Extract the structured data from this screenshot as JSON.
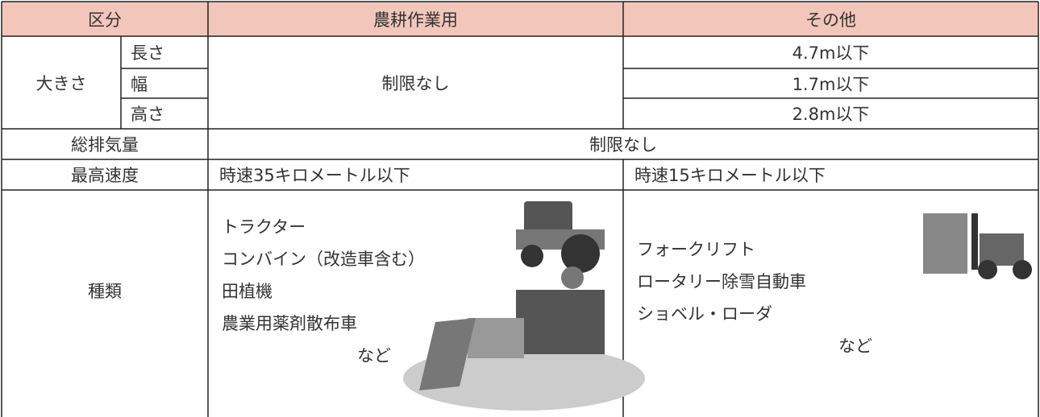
{
  "header": {
    "category": "区分",
    "agri": "農耕作業用",
    "other": "その他"
  },
  "size": {
    "label": "大きさ",
    "length": {
      "label": "長さ",
      "other": "4.7m以下"
    },
    "width": {
      "label": "幅",
      "other": "1.7m以下"
    },
    "height": {
      "label": "高さ",
      "other": "2.8m以下"
    },
    "agri": "制限なし"
  },
  "displacement": {
    "label": "総排気量",
    "value": "制限なし"
  },
  "speed": {
    "label": "最高速度",
    "agri": "時速35キロメートル以下",
    "other": "時速15キロメートル以下"
  },
  "types": {
    "label": "種類",
    "agri": {
      "items": [
        "トラクター",
        "コンバイン（改造車含む）",
        "田植機",
        "農業用薬剤散布車"
      ],
      "suffix": "など"
    },
    "other": {
      "items": [
        "フォークリフト",
        "ロータリー除雪自動車",
        "ショベル・ローダ"
      ],
      "suffix": "など"
    }
  }
}
